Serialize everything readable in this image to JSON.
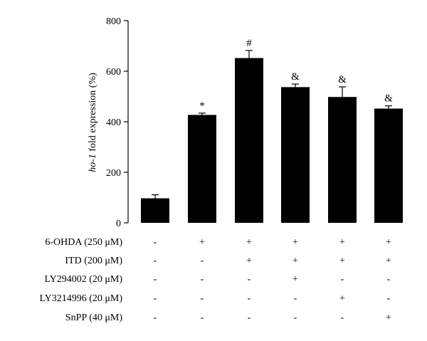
{
  "chart_data": {
    "type": "bar",
    "ylabel_italic": "ho-1",
    "ylabel_rest": " fold expression (%)",
    "ylim": [
      0,
      800
    ],
    "yticks": [
      0,
      200,
      400,
      600,
      800
    ],
    "ytick_labels": [
      "0",
      "200",
      "400",
      "600",
      "800"
    ],
    "values": [
      97,
      427,
      652,
      537,
      498,
      452
    ],
    "errors": [
      14,
      7,
      30,
      12,
      40,
      11
    ],
    "significance": [
      "",
      "*",
      "#",
      "&",
      "&",
      "&"
    ],
    "bar_color": "#000000",
    "conditions": [
      {
        "label": "6-OHDA (250 μM)",
        "signs": [
          "-",
          "+",
          "+",
          "+",
          "+",
          "+"
        ]
      },
      {
        "label": "ITD (200 μM)",
        "signs": [
          "-",
          "-",
          "+",
          "+",
          "+",
          "+"
        ]
      },
      {
        "label": "LY294002 (20 μM)",
        "signs": [
          "-",
          "-",
          "-",
          "+",
          "-",
          "-"
        ]
      },
      {
        "label": "LY3214996 (20 μM)",
        "signs": [
          "-",
          "-",
          "-",
          "-",
          "+",
          "-"
        ]
      },
      {
        "label": "SnPP (40 μM)",
        "signs": [
          "-",
          "-",
          "-",
          "-",
          "-",
          "+"
        ]
      }
    ]
  }
}
